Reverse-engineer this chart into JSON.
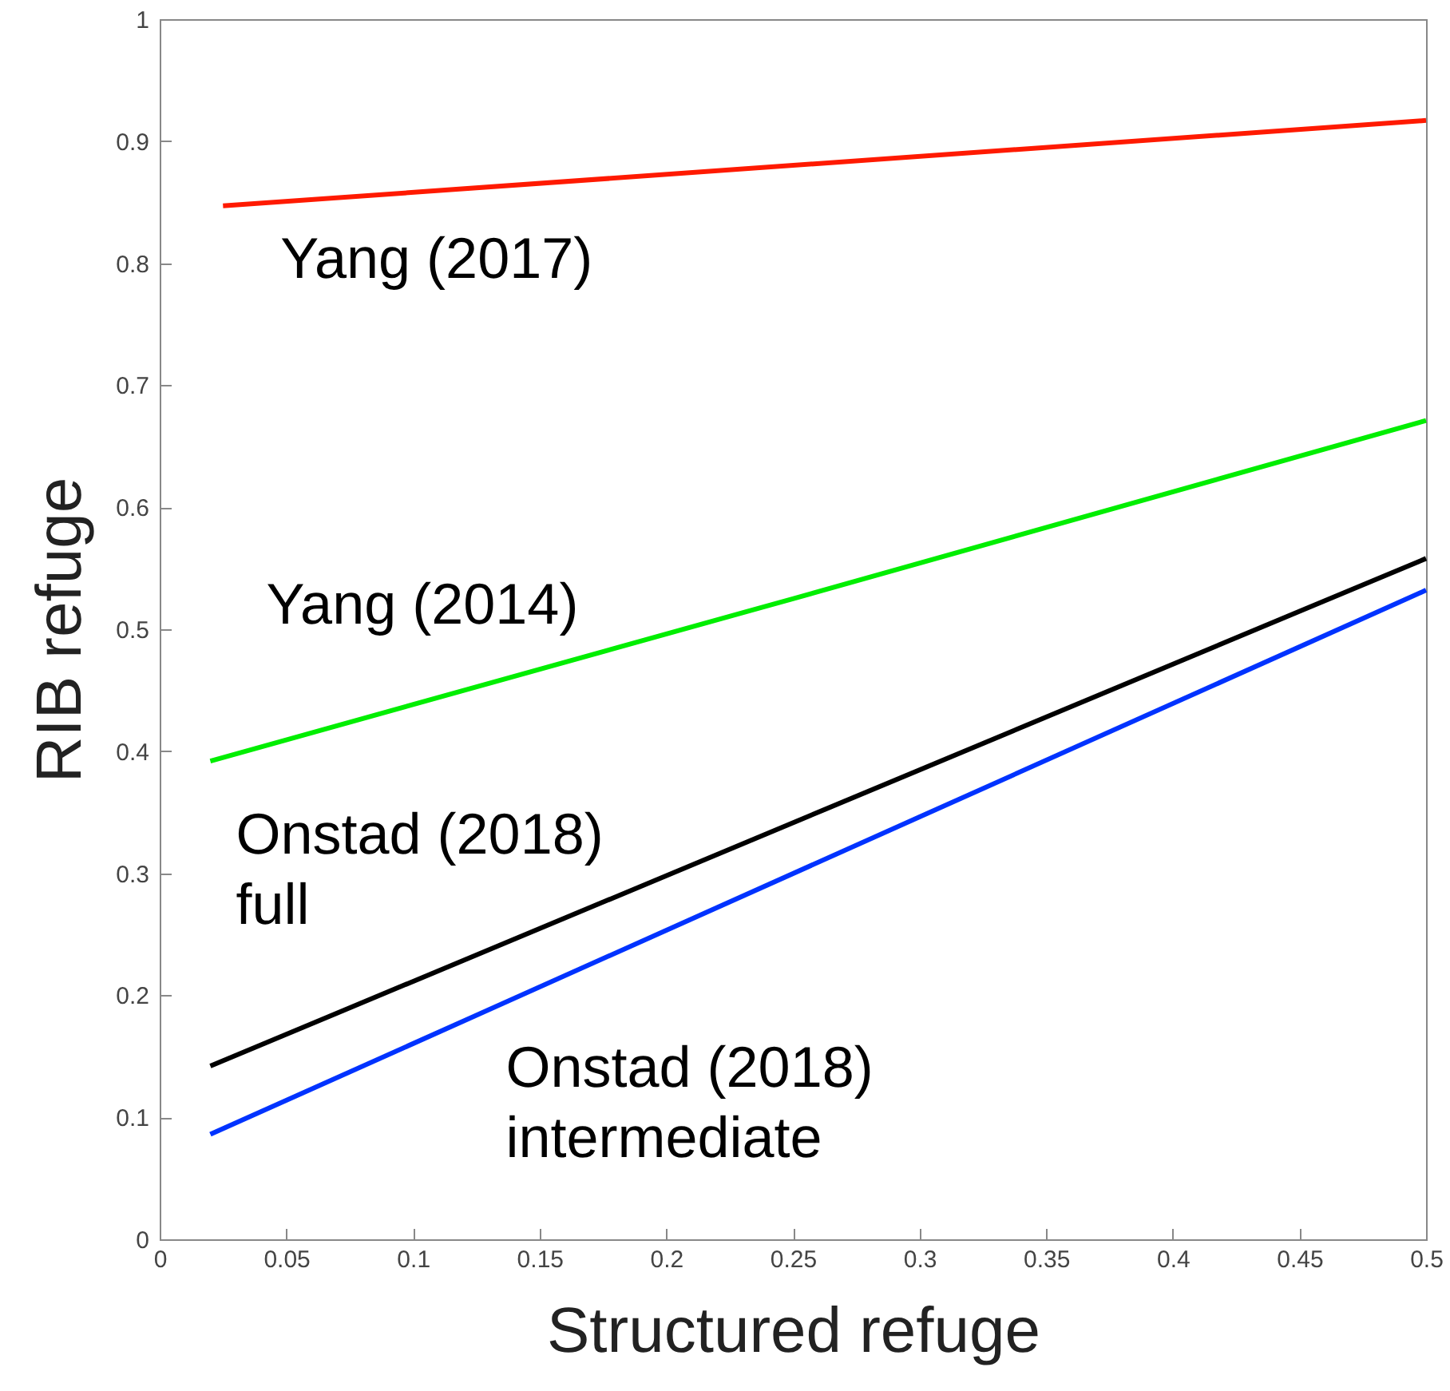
{
  "chart_data": {
    "type": "line",
    "xlabel": "Structured refuge",
    "ylabel": "RIB refuge",
    "xlim": [
      0,
      0.5
    ],
    "ylim": [
      0,
      1
    ],
    "xticks": [
      0,
      0.05,
      0.1,
      0.15,
      0.2,
      0.25,
      0.3,
      0.35,
      0.4,
      0.45,
      0.5
    ],
    "yticks": [
      0,
      0.1,
      0.2,
      0.3,
      0.4,
      0.5,
      0.6,
      0.7,
      0.8,
      0.9,
      1
    ],
    "line_style": "solid",
    "series": [
      {
        "name": "Yang (2017)",
        "color": "#ff1a00",
        "x": [
          0.025,
          0.5
        ],
        "values": [
          0.847,
          0.917
        ]
      },
      {
        "name": "Yang (2014)",
        "color": "#00ee00",
        "x": [
          0.02,
          0.25,
          0.5
        ],
        "values": [
          0.392,
          0.525,
          0.671
        ]
      },
      {
        "name": "Onstad (2018)\nfull",
        "color": "#000000",
        "x": [
          0.02,
          0.5
        ],
        "values": [
          0.142,
          0.558
        ]
      },
      {
        "name": "Onstad (2018)\nintermediate",
        "color": "#0033ff",
        "x": [
          0.02,
          0.5
        ],
        "values": [
          0.086,
          0.532
        ]
      }
    ]
  }
}
